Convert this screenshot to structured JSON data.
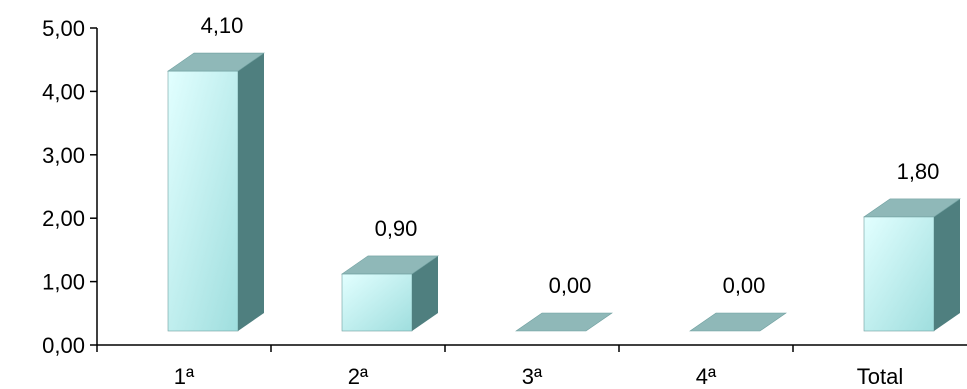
{
  "chart_data": {
    "type": "bar",
    "style": "3d-column",
    "categories": [
      "1ª",
      "2ª",
      "3ª",
      "4ª",
      "Total"
    ],
    "values": [
      4.1,
      0.9,
      0.0,
      0.0,
      1.8
    ],
    "value_labels": [
      "4,10",
      "0,90",
      "0,00",
      "0,00",
      "1,80"
    ],
    "yticks": [
      "0,00",
      "1,00",
      "2,00",
      "3,00",
      "4,00",
      "5,00"
    ],
    "ylim": [
      0,
      5
    ],
    "title": "",
    "xlabel": "",
    "ylabel": "",
    "grid": false,
    "legend": "none",
    "colors": {
      "front_top": "#e2ffff",
      "front_bottom": "#9fdede",
      "side": "#4f7f7f",
      "top": "#8fb8b8",
      "axis": "#000000"
    }
  }
}
